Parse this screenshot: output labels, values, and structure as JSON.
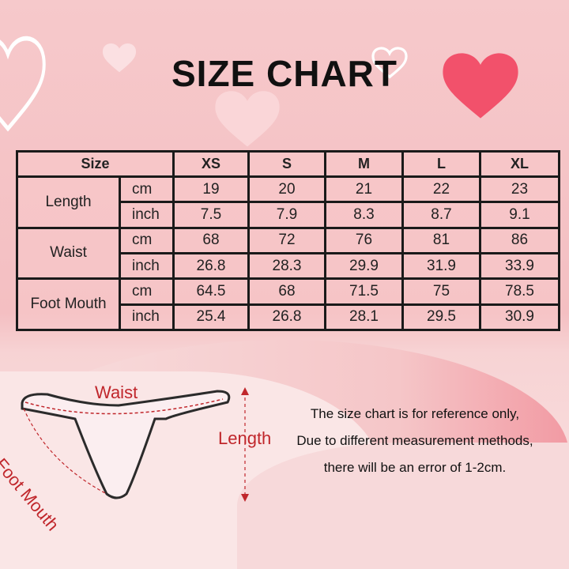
{
  "title": "SIZE CHART",
  "table": {
    "header": [
      "Size",
      "XS",
      "S",
      "M",
      "L",
      "XL"
    ],
    "groups": [
      {
        "label": "Length",
        "rows": [
          {
            "unit": "cm",
            "values": [
              "19",
              "20",
              "21",
              "22",
              "23"
            ]
          },
          {
            "unit": "inch",
            "values": [
              "7.5",
              "7.9",
              "8.3",
              "8.7",
              "9.1"
            ]
          }
        ]
      },
      {
        "label": "Waist",
        "rows": [
          {
            "unit": "cm",
            "values": [
              "68",
              "72",
              "76",
              "81",
              "86"
            ]
          },
          {
            "unit": "inch",
            "values": [
              "26.8",
              "28.3",
              "29.9",
              "31.9",
              "33.9"
            ]
          }
        ]
      },
      {
        "label": "Foot Mouth",
        "rows": [
          {
            "unit": "cm",
            "values": [
              "64.5",
              "68",
              "71.5",
              "75",
              "78.5"
            ]
          },
          {
            "unit": "inch",
            "values": [
              "25.4",
              "26.8",
              "28.1",
              "29.5",
              "30.9"
            ]
          }
        ]
      }
    ]
  },
  "diagram": {
    "waist_label": "Waist",
    "foot_mouth_label": "Foot Mouth",
    "length_label": "Length"
  },
  "note": [
    "The size chart is for reference only,",
    "Due to different measurement methods,",
    "there will be an error of 1-2cm."
  ],
  "colors": {
    "accent": "#c0262b",
    "background": "#f6c9cb"
  }
}
